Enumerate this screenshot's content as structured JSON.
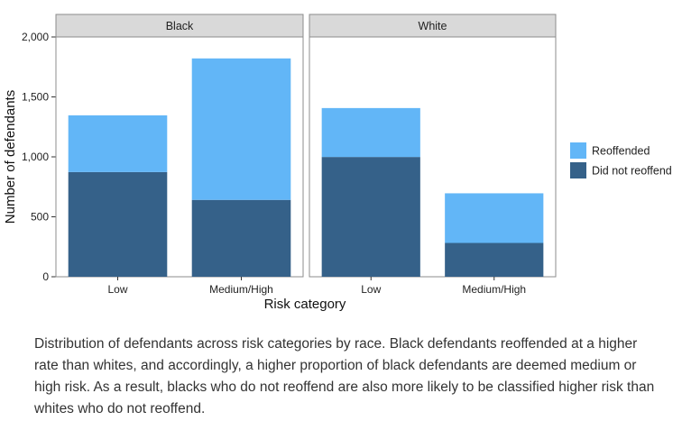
{
  "chart_data": {
    "type": "bar",
    "stacked": true,
    "facets": [
      "Black",
      "White"
    ],
    "categories": [
      "Low",
      "Medium/High"
    ],
    "series": [
      {
        "name": "Did not reoffend",
        "values": {
          "Black": [
            873,
            641
          ],
          "White": [
            999,
            282
          ]
        }
      },
      {
        "name": "Reoffended",
        "values": {
          "Black": [
            473,
            1180
          ],
          "White": [
            408,
            414
          ]
        }
      }
    ],
    "xlabel": "Risk category",
    "ylabel": "Number of defendants",
    "ylim": [
      0,
      2000
    ],
    "yticks": [
      0,
      500,
      1000,
      1500,
      2000
    ],
    "ytick_labels": [
      "0",
      "500",
      "1,000",
      "1,500",
      "2,000"
    ],
    "grid": false,
    "legend": "right",
    "legend_items": [
      "Reoffended",
      "Did not reoffend"
    ],
    "colors": {
      "Reoffended": "#62b6f7",
      "Did not reoffend": "#356189"
    }
  },
  "caption": "Distribution of defendants across risk categories by race. Black defendants reoffended at a higher rate than whites, and accordingly, a higher proportion of black defendants are deemed medium or high risk. As a result, blacks who do not reoffend are also more likely to be classified higher risk than whites who do not reoffend."
}
